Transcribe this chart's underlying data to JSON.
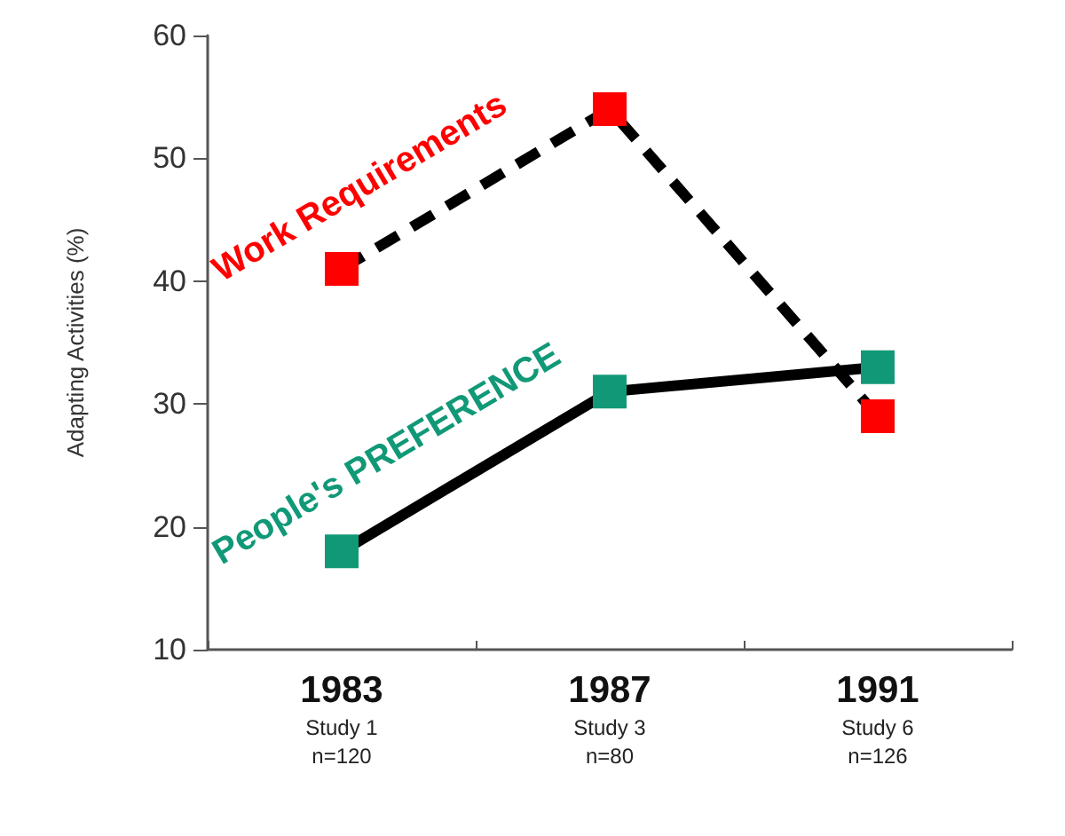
{
  "chart_data": {
    "type": "line",
    "ylabel": "Adapting Activities (%)",
    "categories": [
      "1983\nStudy 1\nn=120",
      "1987\nStudy 3\nn=80",
      "1991\nStudy 6\nn=126"
    ],
    "series": [
      {
        "name": "Work Requirements",
        "color": "#ff0000",
        "values": [
          41,
          54,
          29
        ],
        "line_style": "dashed"
      },
      {
        "name": "People's PREFERENCE",
        "color": "#119977",
        "values": [
          18,
          31,
          33
        ],
        "line_style": "solid"
      }
    ],
    "ylim": [
      10,
      60
    ],
    "yticks": [
      10,
      20,
      30,
      40,
      50,
      60
    ],
    "grid": false,
    "legend": false,
    "marker": "square"
  }
}
